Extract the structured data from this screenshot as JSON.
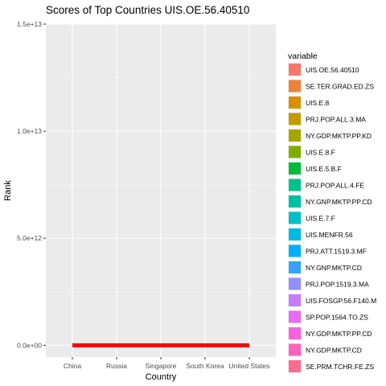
{
  "chart_data": {
    "type": "line",
    "title": "Scores of Top Countries UIS.OE.56.40510",
    "xlabel": "Country",
    "ylabel": "Rank",
    "categories": [
      "China",
      "Russia",
      "Singapore",
      "South Korea",
      "United States"
    ],
    "ylim": [
      -550000000000.0,
      15000000000000.0
    ],
    "yticks": [
      0,
      5000000000000.0,
      10000000000000.0,
      15000000000000.0
    ],
    "ytick_labels": [
      "0.0e+00",
      "5.0e+12",
      "1.0e+13",
      "1.5e+13"
    ],
    "grid": true,
    "legend_position": "right",
    "legend_title": "variable",
    "series": [
      {
        "name": "UIS.OE.56.40510",
        "color": "#F8766D",
        "values": [
          0,
          0,
          0,
          0,
          0
        ]
      },
      {
        "name": "SE.TER.GRAD.ED.ZS",
        "color": "#EC8239",
        "values": [
          0,
          0,
          0,
          0,
          0
        ]
      },
      {
        "name": "UIS.E.8",
        "color": "#DB8E00",
        "values": [
          0,
          0,
          0,
          0,
          0
        ]
      },
      {
        "name": "PRJ.POP.ALL.3.MA",
        "color": "#C49A00",
        "values": [
          0,
          0,
          0,
          0,
          0
        ]
      },
      {
        "name": "NY.GDP.MKTP.PP.KD",
        "color": "#A6A400",
        "values": [
          0,
          0,
          0,
          0,
          0
        ]
      },
      {
        "name": "UIS.E.8.F",
        "color": "#7CAE00",
        "values": [
          0,
          0,
          0,
          0,
          0
        ]
      },
      {
        "name": "UIS.E.5.B.F",
        "color": "#00BA38",
        "values": [
          0,
          0,
          0,
          0,
          0
        ]
      },
      {
        "name": "PRJ.POP.ALL.4.FE",
        "color": "#00C08B",
        "values": [
          0,
          0,
          0,
          0,
          0
        ]
      },
      {
        "name": "NY.GNP.MKTP.PP.CD",
        "color": "#00BFA5",
        "values": [
          0,
          0,
          0,
          0,
          0
        ]
      },
      {
        "name": "UIS.E.7.F",
        "color": "#00BFC4",
        "values": [
          0,
          0,
          0,
          0,
          0
        ]
      },
      {
        "name": "UIS.MENFR.56",
        "color": "#00B9E3",
        "values": [
          0,
          0,
          0,
          0,
          0
        ]
      },
      {
        "name": "PRJ.ATT.1519.3.MF",
        "color": "#00B0F6",
        "values": [
          0,
          0,
          0,
          0,
          0
        ]
      },
      {
        "name": "NY.GNP.MKTP.CD",
        "color": "#35A2FF",
        "values": [
          0,
          0,
          0,
          0,
          0
        ]
      },
      {
        "name": "PRJ.POP.1519.3.MA",
        "color": "#9590FF",
        "values": [
          0,
          0,
          0,
          0,
          0
        ]
      },
      {
        "name": "UIS.FOSGP.56.F140.M",
        "color": "#C77CFF",
        "values": [
          0,
          0,
          0,
          0,
          0
        ]
      },
      {
        "name": "SP.POP.1564.TO.ZS",
        "color": "#E76BF3",
        "values": [
          0,
          0,
          0,
          0,
          0
        ]
      },
      {
        "name": "NY.GDP.MKTP.PP.CD",
        "color": "#FA62DB",
        "values": [
          0,
          0,
          0,
          0,
          0
        ]
      },
      {
        "name": "NY.GDP.MKTP.CD",
        "color": "#FF62BC",
        "values": [
          0,
          0,
          0,
          0,
          0
        ]
      },
      {
        "name": "SE.PRM.TCHR.FE.ZS",
        "color": "#FF6C91",
        "values": [
          0,
          0,
          0,
          0,
          0
        ]
      }
    ],
    "highlight_color": "#FF0000"
  }
}
